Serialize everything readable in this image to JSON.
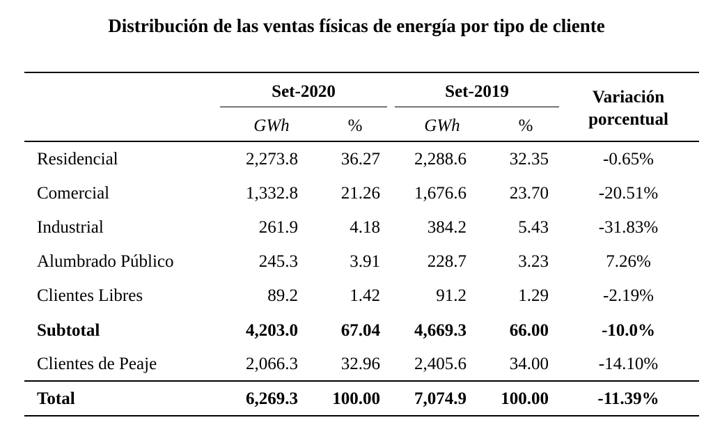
{
  "title": "Distribución de las ventas físicas de energía por tipo de cliente",
  "header": {
    "group_2020": "Set-2020",
    "group_2019": "Set-2019",
    "variation_line1": "Variación",
    "variation_line2": "porcentual",
    "unit_gwh": "GWh",
    "unit_pct": "%"
  },
  "rows": [
    {
      "label": "Residencial",
      "gwh_2020": "2,273.8",
      "pct_2020": "36.27",
      "gwh_2019": "2,288.6",
      "pct_2019": "32.35",
      "variation": "-0.65%",
      "bold": false
    },
    {
      "label": "Comercial",
      "gwh_2020": "1,332.8",
      "pct_2020": "21.26",
      "gwh_2019": "1,676.6",
      "pct_2019": "23.70",
      "variation": "-20.51%",
      "bold": false
    },
    {
      "label": "Industrial",
      "gwh_2020": "261.9",
      "pct_2020": "4.18",
      "gwh_2019": "384.2",
      "pct_2019": "5.43",
      "variation": "-31.83%",
      "bold": false
    },
    {
      "label": "Alumbrado Público",
      "gwh_2020": "245.3",
      "pct_2020": "3.91",
      "gwh_2019": "228.7",
      "pct_2019": "3.23",
      "variation": "7.26%",
      "bold": false
    },
    {
      "label": "Clientes Libres",
      "gwh_2020": "89.2",
      "pct_2020": "1.42",
      "gwh_2019": "91.2",
      "pct_2019": "1.29",
      "variation": "-2.19%",
      "bold": false
    },
    {
      "label": "Subtotal",
      "gwh_2020": "4,203.0",
      "pct_2020": "67.04",
      "gwh_2019": "4,669.3",
      "pct_2019": "66.00",
      "variation": "-10.0%",
      "bold": true
    },
    {
      "label": "Clientes de Peaje",
      "gwh_2020": "2,066.3",
      "pct_2020": "32.96",
      "gwh_2019": "2,405.6",
      "pct_2019": "34.00",
      "variation": "-14.10%",
      "bold": false
    },
    {
      "label": "Total",
      "gwh_2020": "6,269.3",
      "pct_2020": "100.00",
      "gwh_2019": "7,074.9",
      "pct_2019": "100.00",
      "variation": "-11.39%",
      "bold": true
    }
  ]
}
